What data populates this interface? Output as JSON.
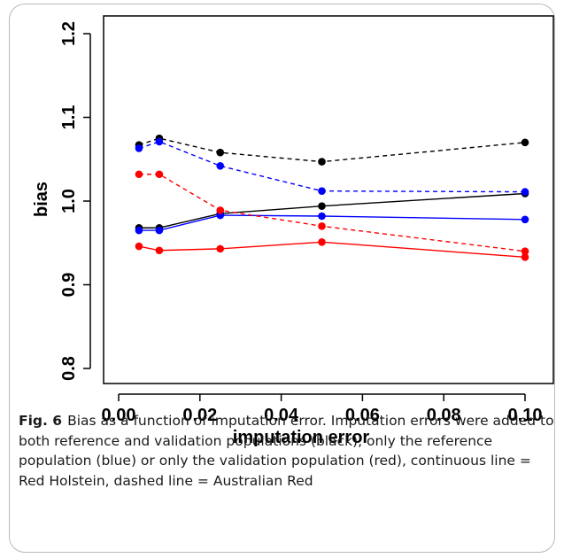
{
  "chart_data": {
    "type": "line",
    "title": "",
    "xlabel": "imputation error",
    "ylabel": "bias",
    "xlim": [
      0.0,
      0.1
    ],
    "ylim": [
      0.78,
      1.22
    ],
    "x_ticks": [
      "0.00",
      "0.02",
      "0.04",
      "0.06",
      "0.08",
      "0.10"
    ],
    "y_ticks": [
      "0.8",
      "0.9",
      "1.0",
      "1.1",
      "1.2"
    ],
    "x_tick_values": [
      0.0,
      0.02,
      0.04,
      0.06,
      0.08,
      0.1
    ],
    "y_tick_values": [
      0.8,
      0.9,
      1.0,
      1.1,
      1.2
    ],
    "x": [
      0.005,
      0.01,
      0.025,
      0.05,
      0.1
    ],
    "grid": false,
    "legend": "none",
    "series": [
      {
        "color": "#000000",
        "line": "solid",
        "values": [
          0.968,
          0.968,
          0.985,
          0.994,
          1.009
        ]
      },
      {
        "color": "#000000",
        "line": "dashed",
        "values": [
          1.067,
          1.075,
          1.058,
          1.047,
          1.07
        ]
      },
      {
        "color": "#0000ff",
        "line": "solid",
        "values": [
          0.965,
          0.965,
          0.983,
          0.982,
          0.978
        ]
      },
      {
        "color": "#0000ff",
        "line": "dashed",
        "values": [
          1.063,
          1.071,
          1.042,
          1.012,
          1.011
        ]
      },
      {
        "color": "#ff0000",
        "line": "solid",
        "values": [
          0.946,
          0.941,
          0.943,
          0.951,
          0.933
        ]
      },
      {
        "color": "#ff0000",
        "line": "dashed",
        "values": [
          1.032,
          1.032,
          0.989,
          0.97,
          0.94
        ]
      }
    ]
  },
  "caption": {
    "label": "Fig. 6",
    "text": "Bias as a function of imputation error. Imputation errors were added to both reference and validation populations (black), only the reference population (blue) or only the validation population (red), continuous line = Red Holstein, dashed line = Australian Red"
  }
}
